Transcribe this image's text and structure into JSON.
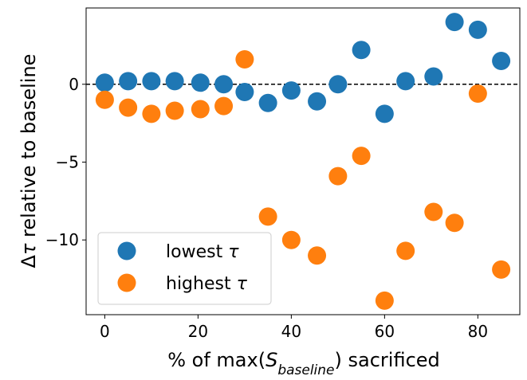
{
  "chart_data": {
    "type": "scatter",
    "xlabel": {
      "pre": "% of max(",
      "var": "S",
      "sub": "baseline",
      "post": ") sacrificed"
    },
    "ylabel": {
      "pre": "Δ",
      "var": "τ",
      "post": " relative to baseline"
    },
    "xlim": [
      -4,
      89
    ],
    "ylim": [
      -14.8,
      4.9
    ],
    "xticks": [
      0,
      20,
      40,
      60,
      80
    ],
    "yticks": [
      0,
      -5,
      -10
    ],
    "ytick_labels": [
      "0",
      "−5",
      "−10"
    ],
    "reference_line": {
      "y": 0,
      "style": "dashed",
      "color": "#000000"
    },
    "grid": false,
    "legend_position": "lower-left",
    "series": [
      {
        "name": "lowest τ",
        "name_parts": {
          "pre": "lowest ",
          "var": "τ"
        },
        "color": "#1f77b4",
        "x": [
          0,
          5,
          10,
          15,
          20.5,
          25.5,
          30,
          35,
          40,
          45.5,
          50,
          55,
          60,
          64.5,
          70.5,
          75,
          80,
          85
        ],
        "y": [
          0.1,
          0.2,
          0.2,
          0.2,
          0.1,
          0.0,
          -0.5,
          -1.2,
          -0.4,
          -1.1,
          0.0,
          2.2,
          -1.9,
          0.2,
          0.5,
          4.0,
          3.5,
          1.5
        ]
      },
      {
        "name": "highest τ",
        "name_parts": {
          "pre": "highest ",
          "var": "τ"
        },
        "color": "#ff7f0e",
        "x": [
          0,
          5,
          10,
          15,
          20.5,
          25.5,
          30,
          35,
          40,
          45.5,
          50,
          55,
          60,
          64.5,
          70.5,
          75,
          80,
          85
        ],
        "y": [
          -1.0,
          -1.5,
          -1.9,
          -1.7,
          -1.6,
          -1.4,
          1.6,
          -8.5,
          -10.0,
          -11.0,
          -5.9,
          -4.6,
          -13.9,
          -10.7,
          -8.2,
          -8.9,
          -0.6,
          -11.9
        ]
      }
    ]
  }
}
